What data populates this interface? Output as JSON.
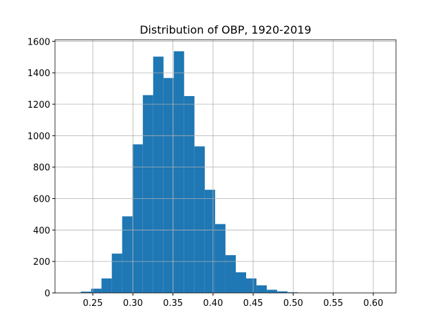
{
  "chart_data": {
    "type": "histogram",
    "title": "Distribution of OBP, 1920-2019",
    "bins": [
      0.2221,
      0.235,
      0.2479,
      0.2608,
      0.2737,
      0.2866,
      0.2995,
      0.3124,
      0.3253,
      0.3382,
      0.351,
      0.3639,
      0.3768,
      0.3897,
      0.4026,
      0.4155,
      0.4284,
      0.4413,
      0.4542,
      0.4671,
      0.48,
      0.4929,
      0.5058,
      0.5187,
      0.5316,
      0.5445,
      0.5574,
      0.5703,
      0.5831,
      0.596,
      0.6089
    ],
    "counts": [
      1,
      8,
      27,
      92,
      250,
      487,
      945,
      1258,
      1503,
      1367,
      1537,
      1252,
      932,
      656,
      438,
      240,
      131,
      92,
      48,
      20,
      10,
      4,
      2,
      1,
      0,
      0,
      0,
      0,
      0,
      1
    ],
    "color": "#1f77b4",
    "xlim": [
      0.2028,
      0.6283
    ],
    "xticks": [
      {
        "value": 0.25,
        "label": "0.25"
      },
      {
        "value": 0.3,
        "label": "0.30"
      },
      {
        "value": 0.35,
        "label": "0.35"
      },
      {
        "value": 0.4,
        "label": "0.40"
      },
      {
        "value": 0.45,
        "label": "0.45"
      },
      {
        "value": 0.5,
        "label": "0.50"
      },
      {
        "value": 0.55,
        "label": "0.55"
      },
      {
        "value": 0.6,
        "label": "0.60"
      }
    ],
    "ylim": [
      0,
      1610
    ],
    "yticks": [
      0,
      200,
      400,
      600,
      800,
      1000,
      1200,
      1400,
      1600
    ],
    "grid": true
  }
}
